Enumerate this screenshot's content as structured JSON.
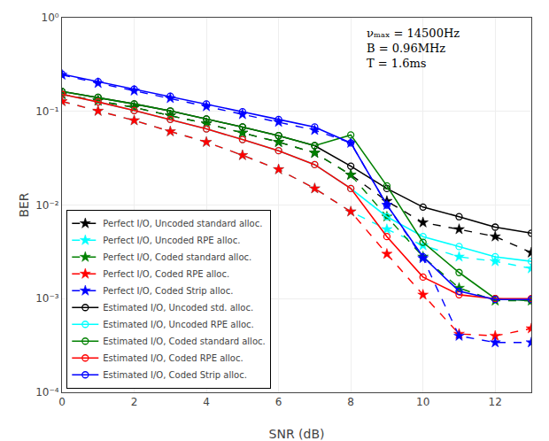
{
  "chart_data": {
    "type": "line",
    "x": [
      0,
      1,
      2,
      3,
      4,
      5,
      6,
      7,
      8,
      9,
      10,
      11,
      12,
      13
    ],
    "series": [
      {
        "name": "Perfect I/O, Uncoded standard alloc.",
        "color": "black",
        "line_style": "dashed",
        "marker": "star",
        "values": [
          0.152,
          0.13,
          0.11,
          0.09,
          0.074,
          0.059,
          0.047,
          0.036,
          0.021,
          0.011,
          0.0065,
          0.0055,
          0.0046,
          0.0031
        ]
      },
      {
        "name": "Perfect I/O, Uncoded RPE alloc.",
        "color": "cyan",
        "line_style": "dashed",
        "marker": "star",
        "values": [
          0.128,
          0.101,
          0.08,
          0.061,
          0.047,
          0.034,
          0.024,
          0.015,
          0.0085,
          0.0055,
          0.0037,
          0.0028,
          0.0025,
          0.0021
        ]
      },
      {
        "name": "Perfect I/O, Coded standard alloc.",
        "color": "green",
        "line_style": "dashed",
        "marker": "star",
        "values": [
          0.152,
          0.13,
          0.11,
          0.09,
          0.074,
          0.059,
          0.047,
          0.036,
          0.021,
          0.0075,
          0.0028,
          0.0013,
          0.00095,
          0.00095
        ]
      },
      {
        "name": "Perfect I/O, Coded RPE alloc.",
        "color": "red",
        "line_style": "dashed",
        "marker": "star",
        "values": [
          0.128,
          0.101,
          0.08,
          0.061,
          0.047,
          0.034,
          0.024,
          0.015,
          0.0085,
          0.003,
          0.0011,
          0.00042,
          0.0004,
          0.00048
        ]
      },
      {
        "name": "Perfect I/O, Coded Strip alloc.",
        "color": "blue",
        "line_style": "dashed",
        "marker": "star",
        "values": [
          0.245,
          0.2,
          0.166,
          0.138,
          0.113,
          0.093,
          0.077,
          0.063,
          0.046,
          0.01,
          0.0027,
          0.0004,
          0.00034,
          0.00034
        ]
      },
      {
        "name": "Estimated I/O, Uncoded std. alloc.",
        "color": "black",
        "line_style": "solid",
        "marker": "circle-open",
        "values": [
          0.163,
          0.141,
          0.12,
          0.101,
          0.083,
          0.068,
          0.055,
          0.043,
          0.026,
          0.015,
          0.0095,
          0.0075,
          0.0058,
          0.005
        ]
      },
      {
        "name": "Estimated I/O, Uncoded RPE alloc.",
        "color": "cyan",
        "line_style": "solid",
        "marker": "circle-open",
        "values": [
          0.152,
          0.126,
          0.102,
          0.082,
          0.065,
          0.05,
          0.038,
          0.027,
          0.015,
          0.0075,
          0.0046,
          0.0036,
          0.0028,
          0.0025
        ]
      },
      {
        "name": "Estimated I/O, Coded standard alloc.",
        "color": "green",
        "line_style": "solid",
        "marker": "circle-open",
        "values": [
          0.163,
          0.141,
          0.12,
          0.101,
          0.083,
          0.068,
          0.055,
          0.043,
          0.056,
          0.016,
          0.004,
          0.0019,
          0.001,
          0.00095
        ]
      },
      {
        "name": "Estimated I/O, Coded RPE alloc.",
        "color": "red",
        "line_style": "solid",
        "marker": "circle-open",
        "values": [
          0.152,
          0.126,
          0.102,
          0.082,
          0.065,
          0.05,
          0.038,
          0.027,
          0.015,
          0.0046,
          0.0017,
          0.0011,
          0.001,
          0.001
        ]
      },
      {
        "name": "Estimated I/O, Coded Strip alloc.",
        "color": "blue",
        "line_style": "solid",
        "marker": "circle-open",
        "values": [
          0.25,
          0.208,
          0.173,
          0.145,
          0.12,
          0.099,
          0.082,
          0.068,
          0.046,
          0.01,
          0.0028,
          0.0012,
          0.00098,
          0.00098
        ]
      }
    ],
    "xlabel": "SNR (dB)",
    "ylabel": "BER",
    "xlim": [
      0,
      13
    ],
    "ylim": [
      0.0001,
      1.0
    ],
    "xticks": [
      0,
      2,
      4,
      6,
      8,
      10,
      12
    ],
    "yticks": [
      {
        "value": 0.0001,
        "label": "10⁻⁴"
      },
      {
        "value": 0.001,
        "label": "10⁻³"
      },
      {
        "value": 0.01,
        "label": "10⁻²"
      },
      {
        "value": 0.1,
        "label": "10⁻¹"
      },
      {
        "value": 1,
        "label": "10⁰"
      }
    ],
    "log": "y",
    "grid": true,
    "legend": "lower left",
    "annotations": [
      "νₘₐₓ = 14500Hz\nB = 0.96MHz\nT = 1.6ms"
    ]
  }
}
